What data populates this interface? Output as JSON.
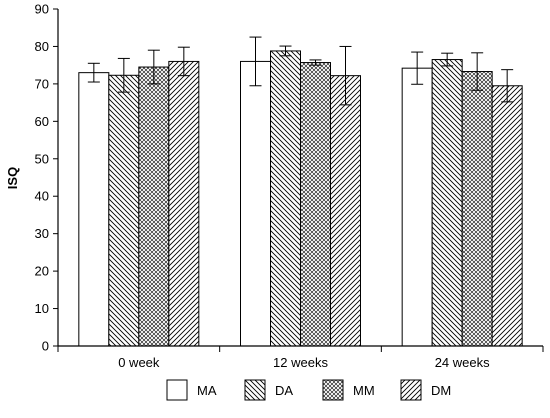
{
  "chart_data": {
    "type": "bar",
    "categories": [
      "0 week",
      "12 weeks",
      "24 weeks"
    ],
    "ylabel": "ISQ",
    "xlabel": "",
    "ylim": [
      0,
      90
    ],
    "yticks": [
      0,
      10,
      20,
      30,
      40,
      50,
      60,
      70,
      80,
      90
    ],
    "legend_position": "bottom",
    "series": [
      {
        "name": "MA",
        "pattern": "none",
        "values": [
          73,
          76,
          74.2
        ],
        "errors": [
          2.5,
          6.5,
          4.3
        ]
      },
      {
        "name": "DA",
        "pattern": "diag-right",
        "values": [
          72.3,
          78.8,
          76.5
        ],
        "errors": [
          4.5,
          1.3,
          1.7
        ]
      },
      {
        "name": "MM",
        "pattern": "cross",
        "values": [
          74.5,
          75.7,
          73.3
        ],
        "errors": [
          4.5,
          0.7,
          5
        ]
      },
      {
        "name": "DM",
        "pattern": "diag-left",
        "values": [
          76,
          72.2,
          69.5
        ],
        "errors": [
          3.8,
          7.8,
          4.3
        ]
      }
    ]
  }
}
